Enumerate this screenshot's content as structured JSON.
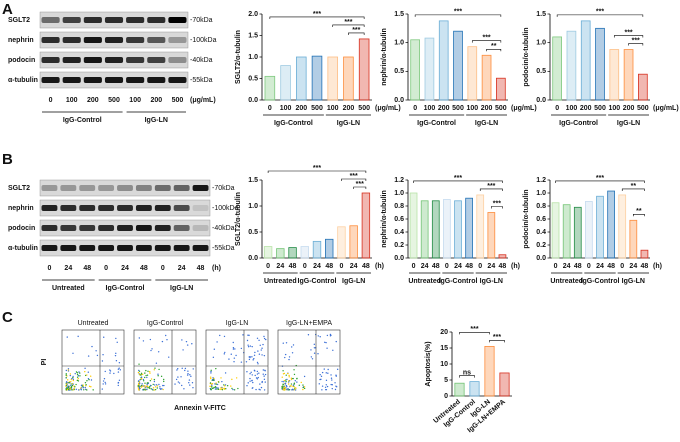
{
  "panel_labels": [
    "A",
    "B",
    "C"
  ],
  "blots": [
    {
      "proteins": [
        "SGLT2",
        "nephrin",
        "podocin",
        "α-tubulin"
      ],
      "markers": [
        "-70kDa",
        "-100kDa",
        "-40kDa",
        "-55kDa"
      ],
      "lanes": [
        "0",
        "100",
        "200",
        "500",
        "100",
        "200",
        "500"
      ],
      "unit": "(μg/mL)",
      "groups": [
        "IgG-Control",
        "IgG-LN"
      ]
    },
    {
      "proteins": [
        "SGLT2",
        "nephrin",
        "podocin",
        "α-tubulin"
      ],
      "markers": [
        "-70kDa",
        "-100kDa",
        "-40kDa",
        "-55kDa"
      ],
      "lanes": [
        "0",
        "24",
        "48",
        "0",
        "24",
        "48",
        "0",
        "24",
        "48"
      ],
      "unit": "(h)",
      "groups": [
        "Untreated",
        "IgG-Control",
        "IgG-LN"
      ]
    }
  ],
  "flow": {
    "panels": [
      "Untreated",
      "IgG-Control",
      "IgG-LN",
      "IgG-LN+EMPA"
    ],
    "y_label": "PI",
    "x_label": "Annexin V-FITC"
  },
  "chart_data": [
    {
      "type": "bar",
      "y_label": "SGLT2/α-tubulin",
      "categories": [
        "0",
        "100",
        "200",
        "500",
        "100",
        "200",
        "500"
      ],
      "x_unit": "(μg/mL)",
      "groups": [
        "IgG-Control",
        "IgG-LN"
      ],
      "values": [
        0.55,
        0.8,
        1.0,
        1.02,
        1.0,
        1.0,
        1.42
      ],
      "colors": [
        "#7fc97f",
        "#9ecae1",
        "#6baed6",
        "#2171b5",
        "#fdbe85",
        "#fd8d3c",
        "#d7301f"
      ],
      "ylim": [
        0,
        2
      ],
      "yticks": [
        {
          "value": 0,
          "label": "0.0"
        },
        {
          "value": 0.5,
          "label": "0.5"
        },
        {
          "value": 1,
          "label": "1.0"
        },
        {
          "value": 1.5,
          "label": "1.5"
        },
        {
          "value": 2,
          "label": "2.0"
        }
      ],
      "annotations": [
        "***",
        "***",
        "***"
      ]
    },
    {
      "type": "bar",
      "y_label": "nephrin/α-tubulin",
      "categories": [
        "0",
        "100",
        "200",
        "500",
        "100",
        "200",
        "500"
      ],
      "x_unit": "(μg/mL)",
      "groups": [
        "IgG-Control",
        "IgG-LN"
      ],
      "values": [
        1.05,
        1.08,
        1.38,
        1.2,
        0.93,
        0.78,
        0.38
      ],
      "colors": [
        "#7fc97f",
        "#9ecae1",
        "#6baed6",
        "#2171b5",
        "#fdbe85",
        "#fd8d3c",
        "#d7301f"
      ],
      "ylim": [
        0,
        1.5
      ],
      "yticks": [
        {
          "value": 0,
          "label": "0.0"
        },
        {
          "value": 0.5,
          "label": "0.5"
        },
        {
          "value": 1,
          "label": "1.0"
        },
        {
          "value": 1.5,
          "label": "1.5"
        }
      ],
      "annotations": [
        "**",
        "***",
        "***"
      ]
    },
    {
      "type": "bar",
      "y_label": "podocin/α-tubulin",
      "categories": [
        "0",
        "100",
        "200",
        "500",
        "100",
        "200",
        "500"
      ],
      "x_unit": "(μg/mL)",
      "groups": [
        "IgG-Control",
        "IgG-LN"
      ],
      "values": [
        1.1,
        1.2,
        1.38,
        1.25,
        0.88,
        0.88,
        0.45
      ],
      "colors": [
        "#7fc97f",
        "#9ecae1",
        "#6baed6",
        "#2171b5",
        "#fdbe85",
        "#fd8d3c",
        "#d7301f"
      ],
      "ylim": [
        0,
        1.5
      ],
      "yticks": [
        {
          "value": 0,
          "label": "0.0"
        },
        {
          "value": 0.5,
          "label": "0.5"
        },
        {
          "value": 1,
          "label": "1.0"
        },
        {
          "value": 1.5,
          "label": "1.5"
        }
      ],
      "annotations": [
        "***",
        "***",
        "***"
      ]
    },
    {
      "type": "bar",
      "y_label": "SGLT2/α-tubulin",
      "categories": [
        "0",
        "24",
        "48",
        "0",
        "24",
        "48",
        "0",
        "24",
        "48"
      ],
      "x_unit": "(h)",
      "groups": [
        "Untreated",
        "IgG-Control",
        "IgG-LN"
      ],
      "values": [
        0.22,
        0.18,
        0.2,
        0.22,
        0.32,
        0.36,
        0.6,
        0.62,
        1.25
      ],
      "colors": [
        "#b8e3a8",
        "#74c476",
        "#238b45",
        "#c6dbef",
        "#6baed6",
        "#2171b5",
        "#fdd0a2",
        "#fd8d3c",
        "#d7301f"
      ],
      "ylim": [
        0,
        1.5
      ],
      "yticks": [
        {
          "value": 0,
          "label": "0.0"
        },
        {
          "value": 0.5,
          "label": "0.5"
        },
        {
          "value": 1,
          "label": "1.0"
        },
        {
          "value": 1.5,
          "label": "1.5"
        }
      ],
      "annotations": [
        "***",
        "***",
        "***"
      ]
    },
    {
      "type": "bar",
      "y_label": "nephrin/α-tubulin",
      "categories": [
        "0",
        "24",
        "48",
        "0",
        "24",
        "48",
        "0",
        "24",
        "48"
      ],
      "x_unit": "(h)",
      "groups": [
        "Untreated",
        "IgG-Control",
        "IgG-LN"
      ],
      "values": [
        1.0,
        0.88,
        0.88,
        0.9,
        0.88,
        0.92,
        0.97,
        0.7,
        0.05
      ],
      "colors": [
        "#b8e3a8",
        "#74c476",
        "#238b45",
        "#c6dbef",
        "#6baed6",
        "#2171b5",
        "#fdd0a2",
        "#fd8d3c",
        "#d7301f"
      ],
      "ylim": [
        0,
        1.2
      ],
      "yticks": [
        {
          "value": 0,
          "label": "0.0"
        },
        0.2,
        0.4,
        0.6,
        0.8,
        {
          "value": 1,
          "label": "1.0"
        },
        1.2
      ],
      "annotations": [
        "***",
        "***",
        "***"
      ]
    },
    {
      "type": "bar",
      "y_label": "podocin/α-tubulin",
      "categories": [
        "0",
        "24",
        "48",
        "0",
        "24",
        "48",
        "0",
        "24",
        "48"
      ],
      "x_unit": "(h)",
      "groups": [
        "Untreated",
        "IgG-Control",
        "IgG-LN"
      ],
      "values": [
        0.85,
        0.82,
        0.78,
        0.87,
        0.95,
        1.03,
        0.97,
        0.58,
        0.12
      ],
      "colors": [
        "#b8e3a8",
        "#74c476",
        "#238b45",
        "#c6dbef",
        "#6baed6",
        "#2171b5",
        "#fdd0a2",
        "#fd8d3c",
        "#d7301f"
      ],
      "ylim": [
        0,
        1.2
      ],
      "yticks": [
        {
          "value": 0,
          "label": "0.0"
        },
        0.2,
        0.4,
        0.6,
        0.8,
        {
          "value": 1,
          "label": "1.0"
        },
        1.2
      ],
      "annotations": [
        "**",
        "**",
        "***"
      ]
    },
    {
      "type": "bar",
      "y_label": "Apoptosis(%)",
      "categories": [
        "Untreated",
        "IgG-Control",
        "IgG-LN",
        "IgG-LN+EMPA"
      ],
      "values": [
        4.0,
        4.5,
        15.5,
        7.2
      ],
      "colors": [
        "#74c476",
        "#6baed6",
        "#fd8d3c",
        "#d7301f"
      ],
      "ylim": [
        0,
        20
      ],
      "yticks": [
        0,
        5,
        10,
        15,
        20
      ],
      "annotations": [
        "ns",
        "***",
        "***"
      ]
    }
  ]
}
